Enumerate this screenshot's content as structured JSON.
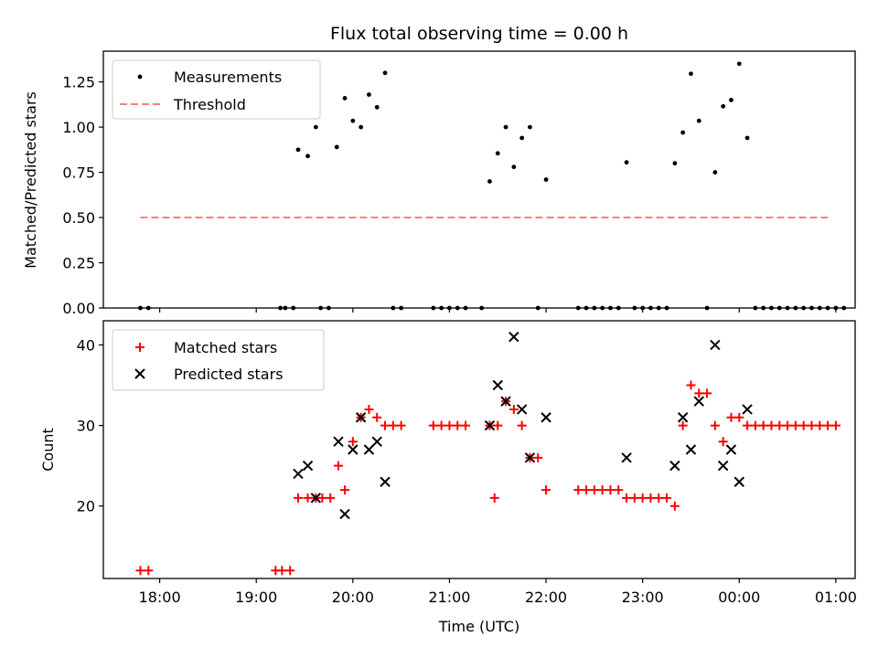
{
  "chart_data": [
    {
      "type": "scatter",
      "title": "Flux total observing time = 0.00 h",
      "xlabel": "",
      "ylabel": "Matched/Predicted stars",
      "ylim": [
        0,
        1.42
      ],
      "yticks": [
        "0.00",
        "0.25",
        "0.50",
        "0.75",
        "1.00",
        "1.25"
      ],
      "legend_position": "top-left",
      "grid": false,
      "series": [
        {
          "name": "Measurements",
          "marker": "dot",
          "color": "#000000",
          "points": [
            [
              "17:48",
              0
            ],
            [
              "17:53",
              0
            ],
            [
              "19:15",
              0
            ],
            [
              "19:18",
              0
            ],
            [
              "19:23",
              0
            ],
            [
              "19:26",
              0.875
            ],
            [
              "19:32",
              0.84
            ],
            [
              "19:37",
              1.0
            ],
            [
              "19:40",
              0
            ],
            [
              "19:45",
              0
            ],
            [
              "19:50",
              0.89
            ],
            [
              "19:55",
              1.16
            ],
            [
              "20:00",
              1.035
            ],
            [
              "20:05",
              1.0
            ],
            [
              "20:10",
              1.18
            ],
            [
              "20:15",
              1.11
            ],
            [
              "20:20",
              1.3
            ],
            [
              "20:25",
              0
            ],
            [
              "20:30",
              0
            ],
            [
              "20:50",
              0
            ],
            [
              "20:55",
              0
            ],
            [
              "21:00",
              0
            ],
            [
              "21:05",
              0
            ],
            [
              "21:10",
              0
            ],
            [
              "21:20",
              0
            ],
            [
              "21:25",
              0.7
            ],
            [
              "21:30",
              0.855
            ],
            [
              "21:35",
              1.0
            ],
            [
              "21:40",
              0.78
            ],
            [
              "21:45",
              0.94
            ],
            [
              "21:50",
              1.0
            ],
            [
              "21:55",
              0
            ],
            [
              "22:00",
              0.71
            ],
            [
              "22:20",
              0
            ],
            [
              "22:25",
              0
            ],
            [
              "22:30",
              0
            ],
            [
              "22:35",
              0
            ],
            [
              "22:40",
              0
            ],
            [
              "22:45",
              0
            ],
            [
              "22:50",
              0.805
            ],
            [
              "22:55",
              0
            ],
            [
              "23:00",
              0
            ],
            [
              "23:05",
              0
            ],
            [
              "23:10",
              0
            ],
            [
              "23:15",
              0
            ],
            [
              "23:20",
              0.8
            ],
            [
              "23:25",
              0.97
            ],
            [
              "23:30",
              1.295
            ],
            [
              "23:35",
              1.035
            ],
            [
              "23:40",
              0
            ],
            [
              "23:45",
              0.75
            ],
            [
              "23:50",
              1.115
            ],
            [
              "23:55",
              1.15
            ],
            [
              "24:00",
              1.35
            ],
            [
              "24:05",
              0.94
            ],
            [
              "24:10",
              0
            ],
            [
              "24:15",
              0
            ],
            [
              "24:20",
              0
            ],
            [
              "24:25",
              0
            ],
            [
              "24:30",
              0
            ],
            [
              "24:35",
              0
            ],
            [
              "24:40",
              0
            ],
            [
              "24:45",
              0
            ],
            [
              "24:50",
              0
            ],
            [
              "24:55",
              0
            ],
            [
              "25:00",
              0
            ],
            [
              "25:05",
              0
            ]
          ]
        },
        {
          "name": "Threshold",
          "marker": "dashed-line",
          "color": "#ff7f7f",
          "points": [
            [
              "17:48",
              0.5
            ],
            [
              "24:55",
              0.5
            ]
          ]
        }
      ]
    },
    {
      "type": "scatter",
      "title": "",
      "xlabel": "Time (UTC)",
      "ylabel": "Count",
      "ylim": [
        11,
        43
      ],
      "yticks": [
        "20",
        "30",
        "40"
      ],
      "xlim": [
        "17:25",
        "25:12"
      ],
      "xticks": [
        "18:00",
        "19:00",
        "20:00",
        "21:00",
        "22:00",
        "23:00",
        "00:00",
        "01:00"
      ],
      "legend_position": "top-left",
      "grid": false,
      "series": [
        {
          "name": "Matched stars",
          "marker": "plus",
          "color": "#ff0000",
          "points": [
            [
              "17:48",
              12
            ],
            [
              "17:53",
              12
            ],
            [
              "19:12",
              12
            ],
            [
              "19:16",
              12
            ],
            [
              "19:21",
              12
            ],
            [
              "19:26",
              21
            ],
            [
              "19:32",
              21
            ],
            [
              "19:37",
              21
            ],
            [
              "19:41",
              21
            ],
            [
              "19:46",
              21
            ],
            [
              "19:51",
              25
            ],
            [
              "19:55",
              22
            ],
            [
              "20:00",
              28
            ],
            [
              "20:05",
              31
            ],
            [
              "20:10",
              32
            ],
            [
              "20:15",
              31
            ],
            [
              "20:20",
              30
            ],
            [
              "20:25",
              30
            ],
            [
              "20:30",
              30
            ],
            [
              "20:50",
              30
            ],
            [
              "20:55",
              30
            ],
            [
              "21:00",
              30
            ],
            [
              "21:05",
              30
            ],
            [
              "21:10",
              30
            ],
            [
              "21:25",
              30
            ],
            [
              "21:28",
              21
            ],
            [
              "21:30",
              30
            ],
            [
              "21:35",
              33
            ],
            [
              "21:40",
              32
            ],
            [
              "21:45",
              30
            ],
            [
              "21:50",
              26
            ],
            [
              "21:55",
              26
            ],
            [
              "22:00",
              22
            ],
            [
              "22:20",
              22
            ],
            [
              "22:25",
              22
            ],
            [
              "22:30",
              22
            ],
            [
              "22:35",
              22
            ],
            [
              "22:40",
              22
            ],
            [
              "22:45",
              22
            ],
            [
              "22:50",
              21
            ],
            [
              "22:55",
              21
            ],
            [
              "23:00",
              21
            ],
            [
              "23:05",
              21
            ],
            [
              "23:10",
              21
            ],
            [
              "23:15",
              21
            ],
            [
              "23:20",
              20
            ],
            [
              "23:25",
              30
            ],
            [
              "23:30",
              35
            ],
            [
              "23:35",
              34
            ],
            [
              "23:40",
              34
            ],
            [
              "23:45",
              30
            ],
            [
              "23:50",
              28
            ],
            [
              "23:55",
              31
            ],
            [
              "24:00",
              31
            ],
            [
              "24:05",
              30
            ],
            [
              "24:10",
              30
            ],
            [
              "24:15",
              30
            ],
            [
              "24:20",
              30
            ],
            [
              "24:25",
              30
            ],
            [
              "24:30",
              30
            ],
            [
              "24:35",
              30
            ],
            [
              "24:40",
              30
            ],
            [
              "24:45",
              30
            ],
            [
              "24:50",
              30
            ],
            [
              "24:55",
              30
            ],
            [
              "25:00",
              30
            ]
          ]
        },
        {
          "name": "Predicted stars",
          "marker": "x",
          "color": "#000000",
          "points": [
            [
              "19:26",
              24
            ],
            [
              "19:32",
              25
            ],
            [
              "19:37",
              21
            ],
            [
              "19:51",
              28
            ],
            [
              "19:55",
              19
            ],
            [
              "20:00",
              27
            ],
            [
              "20:05",
              31
            ],
            [
              "20:10",
              27
            ],
            [
              "20:15",
              28
            ],
            [
              "20:20",
              23
            ],
            [
              "21:25",
              30
            ],
            [
              "21:30",
              35
            ],
            [
              "21:35",
              33
            ],
            [
              "21:40",
              41
            ],
            [
              "21:45",
              32
            ],
            [
              "21:50",
              26
            ],
            [
              "22:00",
              31
            ],
            [
              "22:50",
              26
            ],
            [
              "23:20",
              25
            ],
            [
              "23:25",
              31
            ],
            [
              "23:30",
              27
            ],
            [
              "23:35",
              33
            ],
            [
              "23:45",
              40
            ],
            [
              "23:50",
              25
            ],
            [
              "23:55",
              27
            ],
            [
              "24:00",
              23
            ],
            [
              "24:05",
              32
            ]
          ]
        }
      ]
    }
  ]
}
